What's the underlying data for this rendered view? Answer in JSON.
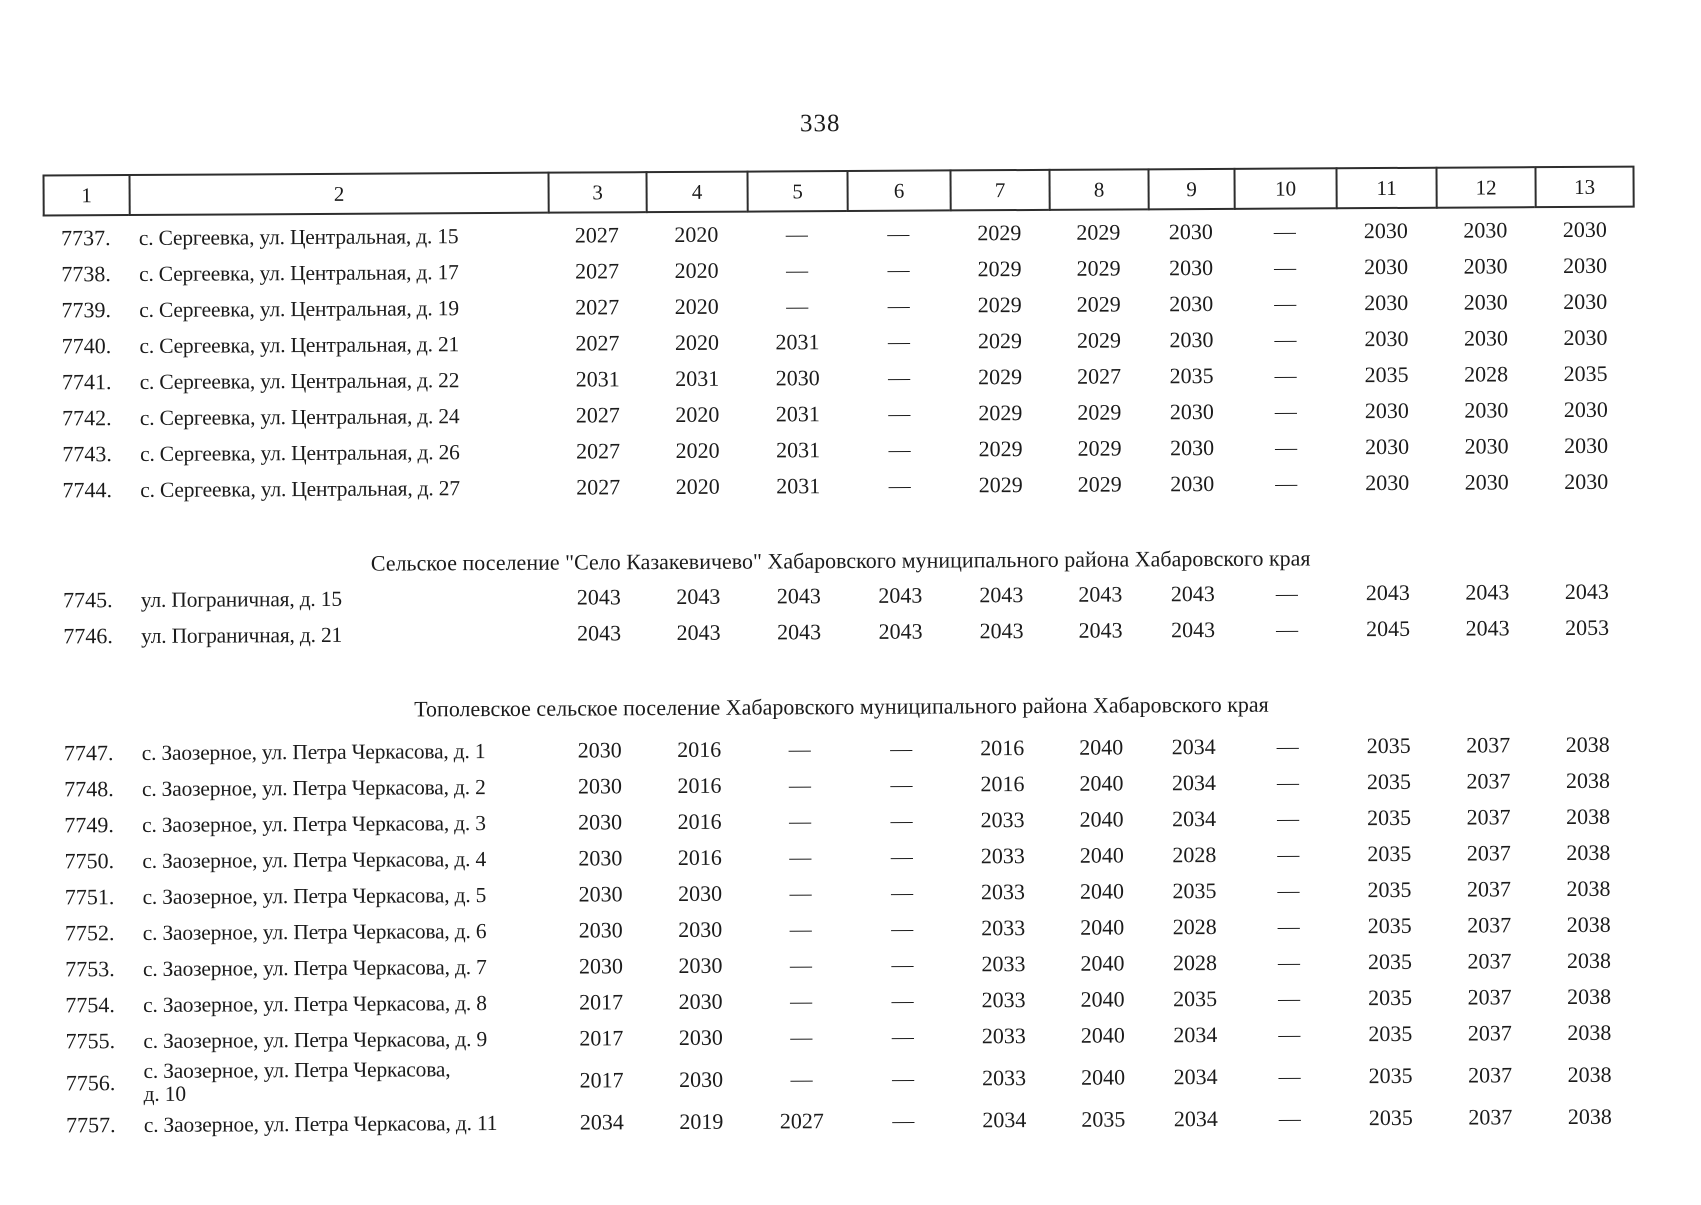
{
  "page_number": "338",
  "table": {
    "column_headers": [
      "1",
      "2",
      "3",
      "4",
      "5",
      "6",
      "7",
      "8",
      "9",
      "10",
      "11",
      "12",
      "13"
    ],
    "sections": [
      {
        "rows": [
          {
            "num": "7737.",
            "address": "с. Сергеевка, ул. Центральная, д. 15",
            "values": [
              "2027",
              "2020",
              "—",
              "—",
              "2029",
              "2029",
              "2030",
              "—",
              "2030",
              "2030",
              "2030"
            ]
          },
          {
            "num": "7738.",
            "address": "с. Сергеевка, ул. Центральная, д. 17",
            "values": [
              "2027",
              "2020",
              "—",
              "—",
              "2029",
              "2029",
              "2030",
              "—",
              "2030",
              "2030",
              "2030"
            ]
          },
          {
            "num": "7739.",
            "address": "с. Сергеевка, ул. Центральная, д. 19",
            "values": [
              "2027",
              "2020",
              "—",
              "—",
              "2029",
              "2029",
              "2030",
              "—",
              "2030",
              "2030",
              "2030"
            ]
          },
          {
            "num": "7740.",
            "address": "с. Сергеевка, ул. Центральная, д. 21",
            "values": [
              "2027",
              "2020",
              "2031",
              "—",
              "2029",
              "2029",
              "2030",
              "—",
              "2030",
              "2030",
              "2030"
            ]
          },
          {
            "num": "7741.",
            "address": "с. Сергеевка, ул. Центральная, д. 22",
            "values": [
              "2031",
              "2031",
              "2030",
              "—",
              "2029",
              "2027",
              "2035",
              "—",
              "2035",
              "2028",
              "2035"
            ]
          },
          {
            "num": "7742.",
            "address": "с. Сергеевка, ул. Центральная, д. 24",
            "values": [
              "2027",
              "2020",
              "2031",
              "—",
              "2029",
              "2029",
              "2030",
              "—",
              "2030",
              "2030",
              "2030"
            ]
          },
          {
            "num": "7743.",
            "address": "с. Сергеевка, ул. Центральная, д. 26",
            "values": [
              "2027",
              "2020",
              "2031",
              "—",
              "2029",
              "2029",
              "2030",
              "—",
              "2030",
              "2030",
              "2030"
            ]
          },
          {
            "num": "7744.",
            "address": "с. Сергеевка, ул. Центральная, д. 27",
            "values": [
              "2027",
              "2020",
              "2031",
              "—",
              "2029",
              "2029",
              "2030",
              "—",
              "2030",
              "2030",
              "2030"
            ]
          }
        ]
      },
      {
        "header": "Сельское поселение \"Село Казакевичево\" Хабаровского муниципального района Хабаровского края",
        "rows": [
          {
            "num": "7745.",
            "address": "ул. Пограничная, д. 15",
            "values": [
              "2043",
              "2043",
              "2043",
              "2043",
              "2043",
              "2043",
              "2043",
              "—",
              "2043",
              "2043",
              "2043"
            ]
          },
          {
            "num": "7746.",
            "address": "ул. Пограничная, д. 21",
            "values": [
              "2043",
              "2043",
              "2043",
              "2043",
              "2043",
              "2043",
              "2043",
              "—",
              "2045",
              "2043",
              "2053"
            ]
          }
        ]
      },
      {
        "header": "Тополевское сельское поселение Хабаровского муниципального района Хабаровского края",
        "rows": [
          {
            "num": "7747.",
            "address": "с. Заозерное, ул. Петра Черкасова, д. 1",
            "values": [
              "2030",
              "2016",
              "—",
              "—",
              "2016",
              "2040",
              "2034",
              "—",
              "2035",
              "2037",
              "2038"
            ]
          },
          {
            "num": "7748.",
            "address": "с. Заозерное, ул. Петра Черкасова, д. 2",
            "values": [
              "2030",
              "2016",
              "—",
              "—",
              "2016",
              "2040",
              "2034",
              "—",
              "2035",
              "2037",
              "2038"
            ]
          },
          {
            "num": "7749.",
            "address": "с. Заозерное, ул. Петра Черкасова, д. 3",
            "values": [
              "2030",
              "2016",
              "—",
              "—",
              "2033",
              "2040",
              "2034",
              "—",
              "2035",
              "2037",
              "2038"
            ]
          },
          {
            "num": "7750.",
            "address": "с. Заозерное, ул. Петра Черкасова, д. 4",
            "values": [
              "2030",
              "2016",
              "—",
              "—",
              "2033",
              "2040",
              "2028",
              "—",
              "2035",
              "2037",
              "2038"
            ]
          },
          {
            "num": "7751.",
            "address": "с. Заозерное, ул. Петра Черкасова, д. 5",
            "values": [
              "2030",
              "2030",
              "—",
              "—",
              "2033",
              "2040",
              "2035",
              "—",
              "2035",
              "2037",
              "2038"
            ]
          },
          {
            "num": "7752.",
            "address": "с. Заозерное, ул. Петра Черкасова, д. 6",
            "values": [
              "2030",
              "2030",
              "—",
              "—",
              "2033",
              "2040",
              "2028",
              "—",
              "2035",
              "2037",
              "2038"
            ]
          },
          {
            "num": "7753.",
            "address": "с. Заозерное, ул. Петра Черкасова, д. 7",
            "values": [
              "2030",
              "2030",
              "—",
              "—",
              "2033",
              "2040",
              "2028",
              "—",
              "2035",
              "2037",
              "2038"
            ]
          },
          {
            "num": "7754.",
            "address": "с. Заозерное, ул. Петра Черкасова, д. 8",
            "values": [
              "2017",
              "2030",
              "—",
              "—",
              "2033",
              "2040",
              "2035",
              "—",
              "2035",
              "2037",
              "2038"
            ]
          },
          {
            "num": "7755.",
            "address": "с. Заозерное, ул. Петра Черкасова, д. 9",
            "values": [
              "2017",
              "2030",
              "—",
              "—",
              "2033",
              "2040",
              "2034",
              "—",
              "2035",
              "2037",
              "2038"
            ]
          },
          {
            "num": "7756.",
            "address": "с. Заозерное, ул. Петра Черкасова,\nд. 10",
            "tall": true,
            "values": [
              "2017",
              "2030",
              "—",
              "—",
              "2033",
              "2040",
              "2034",
              "—",
              "2035",
              "2037",
              "2038"
            ]
          },
          {
            "num": "7757.",
            "address": "с. Заозерное, ул. Петра Черкасова, д. 11",
            "values": [
              "2034",
              "2019",
              "2027",
              "—",
              "2034",
              "2035",
              "2034",
              "—",
              "2035",
              "2037",
              "2038"
            ]
          }
        ]
      }
    ]
  }
}
